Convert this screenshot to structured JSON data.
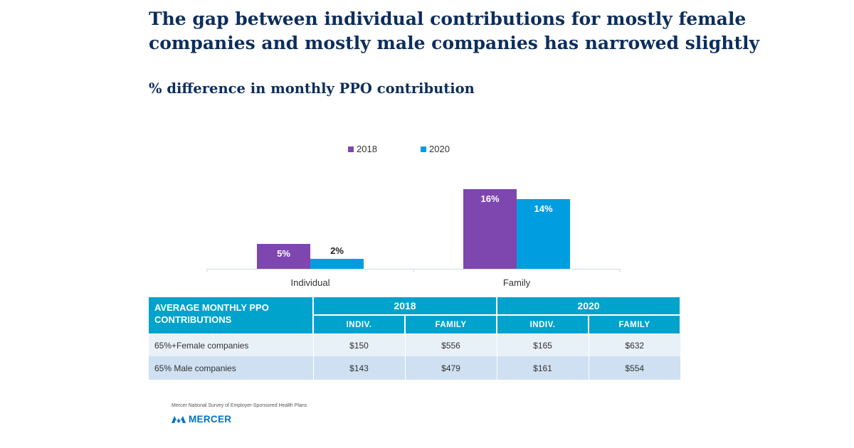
{
  "title_lines": [
    "The gap between individual contributions for mostly female",
    "companies and mostly male companies has narrowed slightly"
  ],
  "subtitle": "% difference in monthly PPO contribution",
  "colors": {
    "series_2018": "#7e47b0",
    "series_2020": "#009ee0",
    "title": "#0d2e5c",
    "table_header": "#00a3cc"
  },
  "chart_data": {
    "type": "bar",
    "categories": [
      "Individual",
      "Family"
    ],
    "series": [
      {
        "name": "2018",
        "values": [
          5,
          16
        ],
        "labels": [
          "5%",
          "16%"
        ]
      },
      {
        "name": "2020",
        "values": [
          2,
          14
        ],
        "labels": [
          "2%",
          "14%"
        ]
      }
    ],
    "ylim": [
      0,
      18
    ],
    "legend": "top-center",
    "grid": false
  },
  "table": {
    "header_main": "AVERAGE MONTHLY PPO CONTRIBUTIONS",
    "years": [
      "2018",
      "2020"
    ],
    "subheaders": [
      "INDIV.",
      "FAMILY",
      "INDIV.",
      "FAMILY"
    ],
    "rows": [
      {
        "label": "65%+Female companies",
        "values": [
          "$150",
          "$556",
          "$165",
          "$632"
        ]
      },
      {
        "label": "65% Male companies",
        "values": [
          "$143",
          "$479",
          "$161",
          "$554"
        ]
      }
    ]
  },
  "source": "Mercer National Survey of Employer-Sponsored  Health Plans",
  "brand": "MERCER"
}
